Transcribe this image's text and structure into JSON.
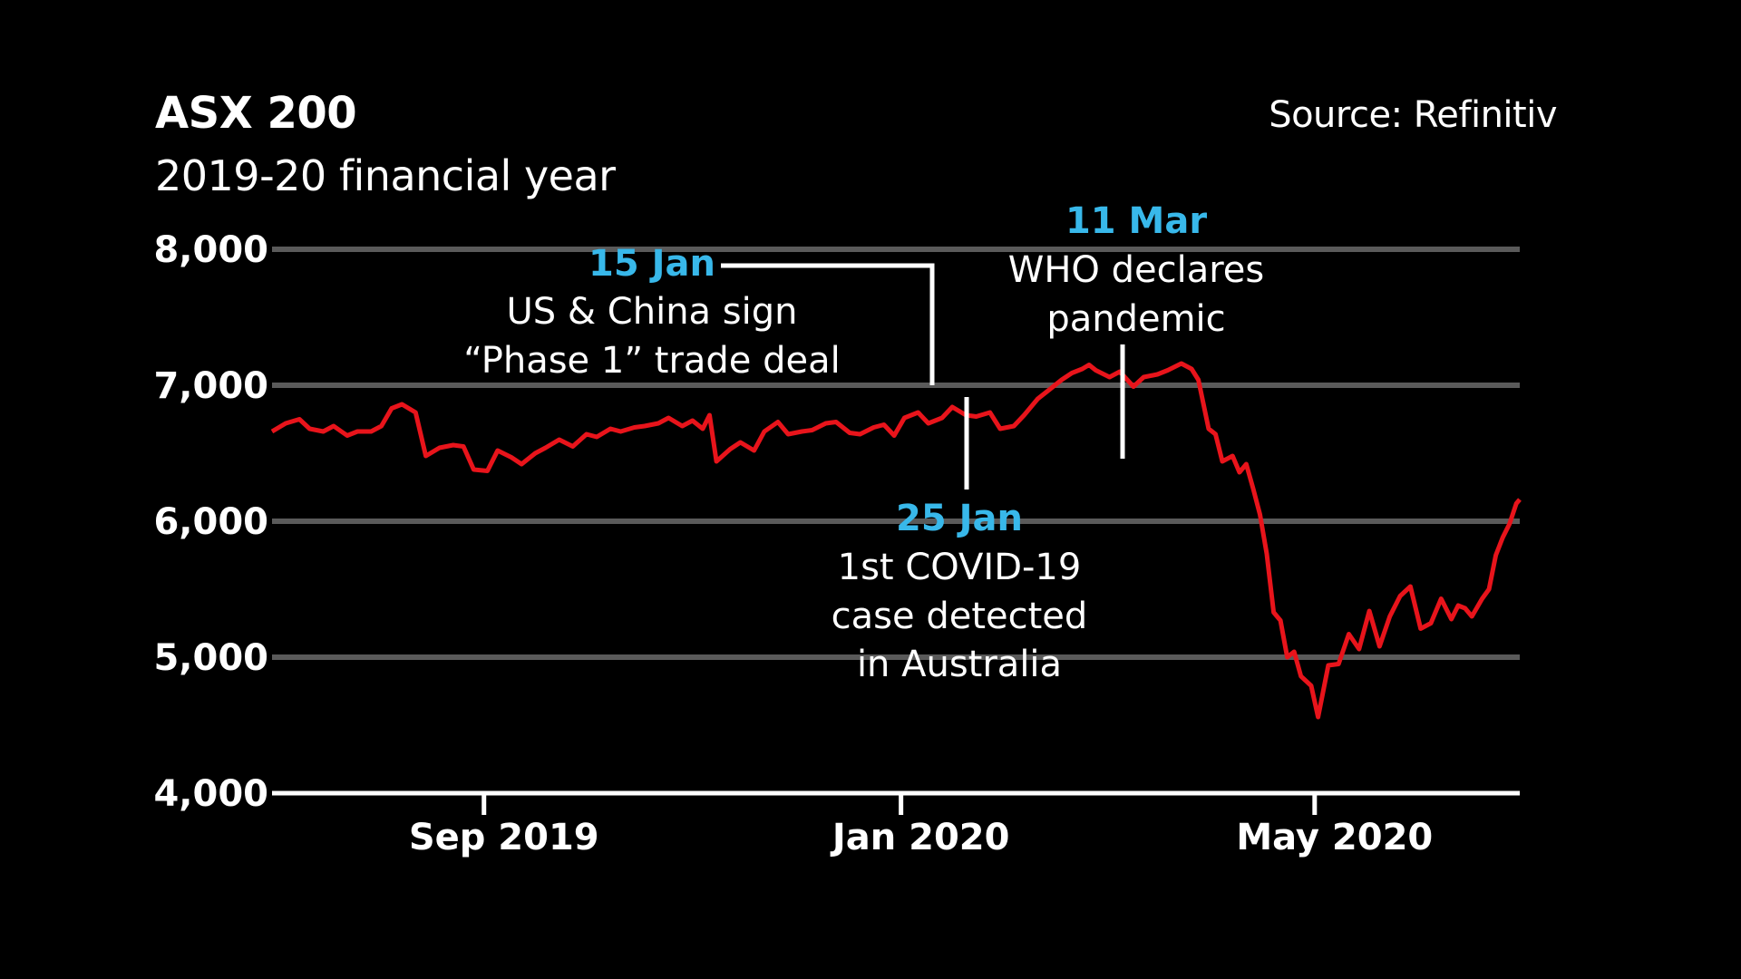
{
  "chart_data": {
    "type": "line",
    "title": "ASX 200",
    "subtitle": "2019-20 financial year",
    "source": "Source: Refinitiv",
    "ylim": [
      4000,
      8000
    ],
    "yticks": [
      8000,
      7000,
      6000,
      5000,
      4000
    ],
    "ytick_labels": [
      "8,000",
      "7,000",
      "6,000",
      "5,000",
      "4,000"
    ],
    "xlim": [
      "2019-07-01",
      "2020-06-30"
    ],
    "xticks": [
      {
        "date": "2019-09-01",
        "label": "Sep 2019"
      },
      {
        "date": "2020-01-01",
        "label": "Jan 2020"
      },
      {
        "date": "2020-05-01",
        "label": "May 2020"
      }
    ],
    "grid": true,
    "line_color": "#E8141B",
    "accent_color": "#38B8EA",
    "series": [
      {
        "points": [
          [
            "2019-07-01",
            6660
          ],
          [
            "2019-07-05",
            6720
          ],
          [
            "2019-07-09",
            6750
          ],
          [
            "2019-07-12",
            6680
          ],
          [
            "2019-07-16",
            6660
          ],
          [
            "2019-07-19",
            6700
          ],
          [
            "2019-07-23",
            6630
          ],
          [
            "2019-07-26",
            6660
          ],
          [
            "2019-07-30",
            6660
          ],
          [
            "2019-08-02",
            6700
          ],
          [
            "2019-08-05",
            6830
          ],
          [
            "2019-08-08",
            6860
          ],
          [
            "2019-08-12",
            6800
          ],
          [
            "2019-08-15",
            6480
          ],
          [
            "2019-08-19",
            6540
          ],
          [
            "2019-08-23",
            6560
          ],
          [
            "2019-08-26",
            6550
          ],
          [
            "2019-08-29",
            6380
          ],
          [
            "2019-09-02",
            6370
          ],
          [
            "2019-09-05",
            6520
          ],
          [
            "2019-09-09",
            6470
          ],
          [
            "2019-09-12",
            6420
          ],
          [
            "2019-09-16",
            6500
          ],
          [
            "2019-09-19",
            6540
          ],
          [
            "2019-09-23",
            6600
          ],
          [
            "2019-09-27",
            6550
          ],
          [
            "2019-10-01",
            6640
          ],
          [
            "2019-10-04",
            6620
          ],
          [
            "2019-10-08",
            6680
          ],
          [
            "2019-10-11",
            6660
          ],
          [
            "2019-10-15",
            6690
          ],
          [
            "2019-10-18",
            6700
          ],
          [
            "2019-10-22",
            6720
          ],
          [
            "2019-10-25",
            6760
          ],
          [
            "2019-10-29",
            6700
          ],
          [
            "2019-11-01",
            6740
          ],
          [
            "2019-11-04",
            6680
          ],
          [
            "2019-11-06",
            6780
          ],
          [
            "2019-11-08",
            6440
          ],
          [
            "2019-11-12",
            6530
          ],
          [
            "2019-11-15",
            6580
          ],
          [
            "2019-11-19",
            6520
          ],
          [
            "2019-11-22",
            6660
          ],
          [
            "2019-11-26",
            6730
          ],
          [
            "2019-11-29",
            6640
          ],
          [
            "2019-12-03",
            6660
          ],
          [
            "2019-12-06",
            6670
          ],
          [
            "2019-12-10",
            6720
          ],
          [
            "2019-12-13",
            6730
          ],
          [
            "2019-12-17",
            6650
          ],
          [
            "2019-12-20",
            6640
          ],
          [
            "2019-12-24",
            6690
          ],
          [
            "2019-12-27",
            6710
          ],
          [
            "2019-12-30",
            6630
          ],
          [
            "2020-01-02",
            6760
          ],
          [
            "2020-01-06",
            6800
          ],
          [
            "2020-01-09",
            6720
          ],
          [
            "2020-01-13",
            6760
          ],
          [
            "2020-01-16",
            6840
          ],
          [
            "2020-01-20",
            6780
          ],
          [
            "2020-01-23",
            6770
          ],
          [
            "2020-01-27",
            6800
          ],
          [
            "2020-01-30",
            6680
          ],
          [
            "2020-02-03",
            6700
          ],
          [
            "2020-02-06",
            6780
          ],
          [
            "2020-02-10",
            6900
          ],
          [
            "2020-02-13",
            6960
          ],
          [
            "2020-02-17",
            7040
          ],
          [
            "2020-02-20",
            7090
          ],
          [
            "2020-02-23",
            7120
          ],
          [
            "2020-02-25",
            7150
          ],
          [
            "2020-02-27",
            7110
          ],
          [
            "2020-03-02",
            7060
          ],
          [
            "2020-03-05",
            7100
          ],
          [
            "2020-03-09",
            6990
          ],
          [
            "2020-03-12",
            7060
          ],
          [
            "2020-03-16",
            7080
          ],
          [
            "2020-03-19",
            7110
          ],
          [
            "2020-03-23",
            7160
          ],
          [
            "2020-03-26",
            7120
          ],
          [
            "2020-03-28",
            7040
          ],
          [
            "2020-03-31",
            6680
          ],
          [
            "2020-04-02",
            6640
          ],
          [
            "2020-04-04",
            6440
          ],
          [
            "2020-04-07",
            6480
          ],
          [
            "2020-04-09",
            6360
          ],
          [
            "2020-04-11",
            6420
          ],
          [
            "2020-04-13",
            6240
          ],
          [
            "2020-04-15",
            6050
          ],
          [
            "2020-04-17",
            5760
          ],
          [
            "2020-04-19",
            5330
          ],
          [
            "2020-04-21",
            5270
          ],
          [
            "2020-04-23",
            5000
          ],
          [
            "2020-04-25",
            5040
          ],
          [
            "2020-04-27",
            4860
          ],
          [
            "2020-04-30",
            4790
          ],
          [
            "2020-05-02",
            4560
          ],
          [
            "2020-05-05",
            4940
          ],
          [
            "2020-05-08",
            4950
          ],
          [
            "2020-05-11",
            5170
          ],
          [
            "2020-05-14",
            5060
          ],
          [
            "2020-05-17",
            5340
          ],
          [
            "2020-05-20",
            5080
          ],
          [
            "2020-05-23",
            5300
          ],
          [
            "2020-05-26",
            5450
          ],
          [
            "2020-05-29",
            5520
          ],
          [
            "2020-06-01",
            5210
          ],
          [
            "2020-06-04",
            5250
          ],
          [
            "2020-06-07",
            5430
          ],
          [
            "2020-06-10",
            5280
          ],
          [
            "2020-06-12",
            5380
          ],
          [
            "2020-06-14",
            5360
          ],
          [
            "2020-06-16",
            5300
          ],
          [
            "2020-06-19",
            5430
          ],
          [
            "2020-06-21",
            5500
          ],
          [
            "2020-06-23",
            5750
          ],
          [
            "2020-06-25",
            5880
          ],
          [
            "2020-06-27",
            5980
          ],
          [
            "2020-06-29",
            6130
          ],
          [
            "2020-06-30",
            6160
          ]
        ]
      }
    ],
    "annotations": [
      {
        "date_label": "15 Jan",
        "lines": [
          "US & China sign",
          "“Phase 1” trade deal"
        ]
      },
      {
        "date_label": "25 Jan",
        "lines": [
          "1st COVID-19",
          "case detected",
          "in Australia"
        ]
      },
      {
        "date_label": "11 Mar",
        "lines": [
          "WHO declares",
          "pandemic"
        ]
      }
    ]
  }
}
